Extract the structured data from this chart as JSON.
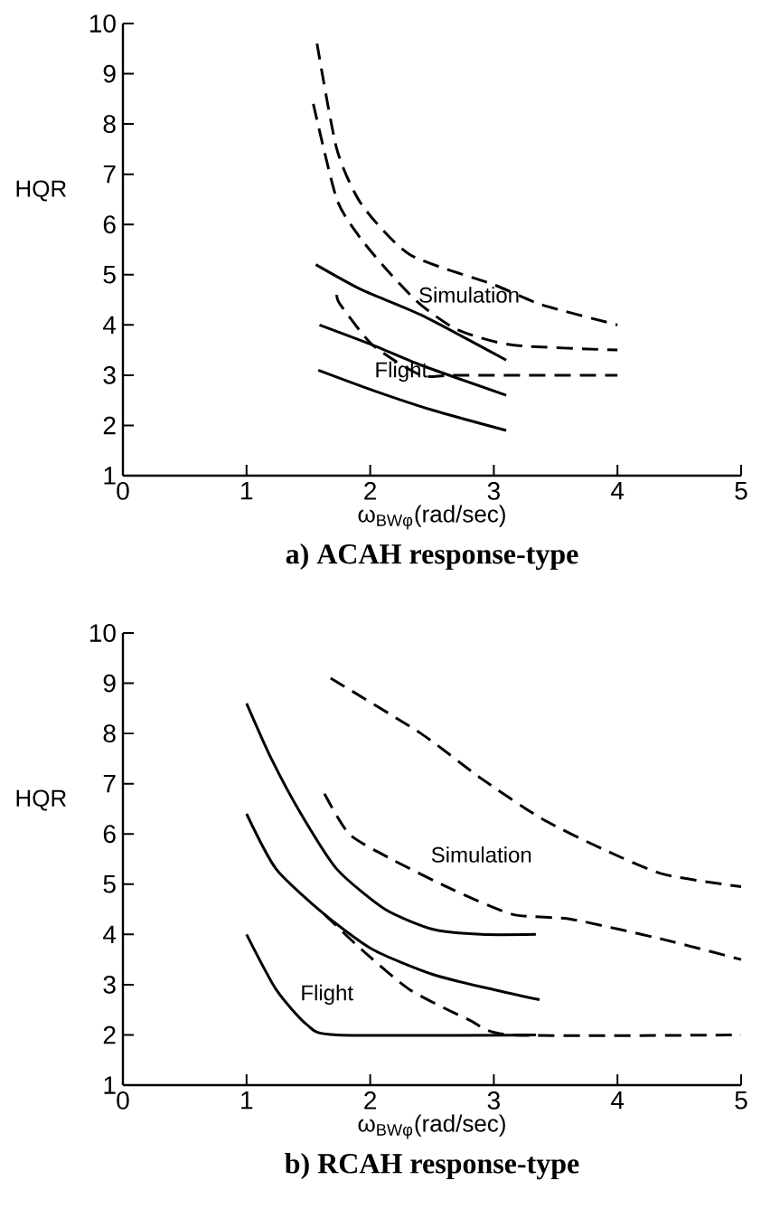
{
  "chart_data": [
    {
      "type": "line",
      "title": "a) ACAH response-type",
      "xlabel": "ω$_{BWφ}$(rad/sec)",
      "ylabel": "HQR",
      "xlim": [
        0,
        5
      ],
      "ylim": [
        1,
        10
      ],
      "xticks": [
        0,
        1,
        2,
        3,
        4,
        5
      ],
      "yticks": [
        1,
        2,
        3,
        4,
        5,
        6,
        7,
        8,
        9,
        10
      ],
      "series": [
        {
          "color": "#000000",
          "line_style": "dashed",
          "x": [
            1.57,
            1.73,
            1.93,
            2.32,
            3.0,
            3.39,
            4.0
          ],
          "values": [
            9.6,
            7.5,
            6.4,
            5.4,
            4.8,
            4.4,
            4.0
          ]
        },
        {
          "color": "#000000",
          "line_style": "dashed",
          "x": [
            1.54,
            1.73,
            1.93,
            2.17,
            2.41,
            2.71,
            3.15,
            4.0
          ],
          "values": [
            8.4,
            6.5,
            5.7,
            5.0,
            4.4,
            3.9,
            3.6,
            3.5
          ]
        },
        {
          "color": "#000000",
          "line_style": "dashed",
          "x": [
            1.73,
            1.76,
            2.02,
            2.41,
            2.71,
            4.0
          ],
          "values": [
            4.6,
            4.4,
            3.6,
            3.0,
            3.0,
            3.0
          ]
        },
        {
          "color": "#000000",
          "line_style": "solid",
          "x": [
            1.56,
            1.93,
            2.41,
            3.1
          ],
          "values": [
            5.2,
            4.7,
            4.2,
            3.3
          ]
        },
        {
          "color": "#000000",
          "line_style": "solid",
          "x": [
            1.59,
            2.02,
            2.41,
            3.1
          ],
          "values": [
            4.0,
            3.6,
            3.2,
            2.6
          ]
        },
        {
          "color": "#000000",
          "line_style": "solid",
          "x": [
            1.58,
            2.02,
            2.51,
            3.1
          ],
          "values": [
            3.1,
            2.7,
            2.3,
            1.9
          ]
        }
      ],
      "annotations": [
        "Simulation",
        "Flight"
      ]
    },
    {
      "type": "line",
      "title": "b) RCAH response-type",
      "xlabel": "ω$_{BWφ}$(rad/sec)",
      "ylabel": "HQR",
      "xlim": [
        0,
        5
      ],
      "ylim": [
        1,
        10
      ],
      "xticks": [
        0,
        1,
        2,
        3,
        4,
        5
      ],
      "yticks": [
        1,
        2,
        3,
        4,
        5,
        6,
        7,
        8,
        9,
        10
      ],
      "series": [
        {
          "color": "#000000",
          "line_style": "dashed",
          "x": [
            1.68,
            2.41,
            2.9,
            3.39,
            3.88,
            4.37,
            5.0
          ],
          "values": [
            9.1,
            8.0,
            7.1,
            6.3,
            5.7,
            5.2,
            4.95
          ]
        },
        {
          "color": "#000000",
          "line_style": "dashed",
          "x": [
            1.63,
            1.83,
            2.17,
            2.66,
            3.15,
            3.63,
            4.37,
            5.0
          ],
          "values": [
            6.8,
            6.0,
            5.5,
            4.9,
            4.4,
            4.3,
            3.9,
            3.5
          ]
        },
        {
          "color": "#000000",
          "line_style": "dashed",
          "x": [
            1.63,
            1.93,
            2.32,
            2.8,
            3.15,
            5.0
          ],
          "values": [
            4.4,
            3.7,
            2.9,
            2.3,
            2.0,
            2.0
          ]
        },
        {
          "color": "#000000",
          "line_style": "solid",
          "x": [
            1.0,
            1.2,
            1.44,
            1.73,
            2.12,
            2.51,
            2.9,
            3.34
          ],
          "values": [
            8.6,
            7.5,
            6.4,
            5.3,
            4.5,
            4.1,
            4.0,
            4.0
          ]
        },
        {
          "color": "#000000",
          "line_style": "solid",
          "x": [
            1.0,
            1.24,
            1.63,
            2.02,
            2.51,
            3.0,
            3.37
          ],
          "values": [
            6.4,
            5.3,
            4.4,
            3.7,
            3.2,
            2.9,
            2.7
          ]
        },
        {
          "color": "#000000",
          "line_style": "solid",
          "x": [
            1.0,
            1.24,
            1.49,
            1.73,
            3.34
          ],
          "values": [
            4.0,
            2.9,
            2.2,
            2.0,
            2.0
          ]
        }
      ],
      "annotations": [
        "Simulation",
        "Flight"
      ]
    }
  ]
}
